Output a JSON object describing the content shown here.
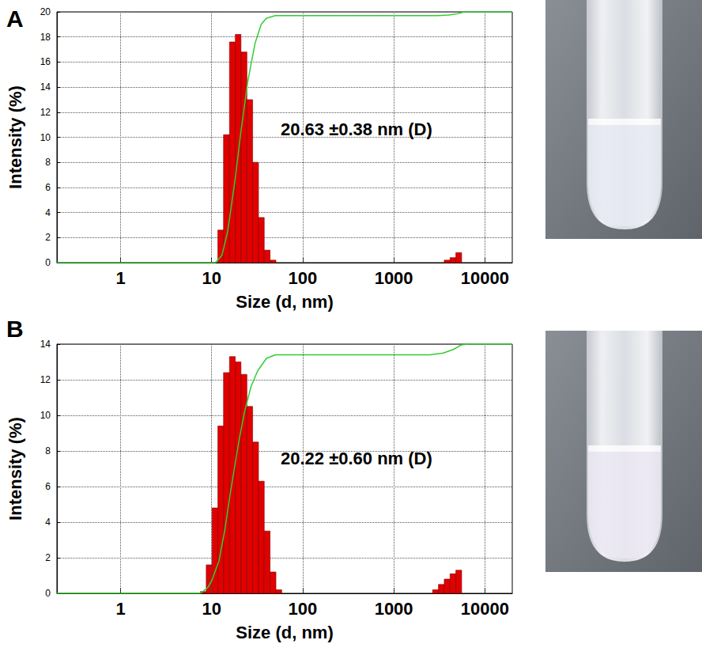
{
  "chart_data": [
    {
      "type": "histogram",
      "title": "A",
      "annotations": [
        "20.63 ±0.38 nm (D)"
      ],
      "x_label": "Size (d, nm)",
      "y_label": "Intensity (%)",
      "log": "x",
      "grid": true,
      "xlim": [
        0.2,
        20000
      ],
      "xticks": [
        1,
        10,
        100,
        1000,
        10000
      ],
      "ylim": [
        0,
        20
      ],
      "yticks": [
        0,
        2,
        4,
        6,
        8,
        10,
        12,
        14,
        16,
        18,
        20
      ],
      "bins": [
        7.53,
        8.72,
        10.1,
        11.7,
        13.5,
        15.7,
        18.2,
        21.0,
        24.4,
        28.2,
        32.7,
        37.8,
        43.8,
        50.8,
        58.8,
        68.1,
        78.8,
        91.3,
        105.7,
        122.4,
        141.8,
        164.2,
        190.1,
        220.2,
        255.0,
        295.3,
        342.0,
        396.1,
        458.7,
        531.2,
        615.2,
        712.4,
        825.0,
        955.4,
        1106,
        1281,
        1484,
        1718,
        1990,
        2305,
        2669,
        3091,
        3580,
        4146,
        4801,
        5560,
        6439
      ],
      "series": [
        {
          "type": "bar",
          "color": "#e00000",
          "values": [
            0,
            0,
            0,
            2.6,
            10.2,
            17.6,
            18.2,
            16.8,
            13.0,
            8.0,
            3.6,
            1.0,
            0.2,
            0,
            0,
            0,
            0,
            0,
            0,
            0,
            0,
            0,
            0,
            0,
            0,
            0,
            0,
            0,
            0,
            0,
            0,
            0,
            0,
            0,
            0,
            0,
            0,
            0,
            0,
            0,
            0,
            0,
            0.2,
            0.4,
            0.8,
            0
          ]
        },
        {
          "type": "line",
          "color": "#33cc33",
          "x": [
            0.2,
            11,
            13,
            15,
            18,
            21,
            25,
            30,
            35,
            40,
            50,
            100,
            1000,
            3000,
            4000,
            5000,
            6000,
            20000
          ],
          "values": [
            0,
            0,
            0.6,
            2.5,
            6.5,
            10.5,
            14.5,
            17.5,
            19,
            19.5,
            19.7,
            19.7,
            19.7,
            19.7,
            19.75,
            19.85,
            20,
            20
          ]
        }
      ]
    },
    {
      "type": "histogram",
      "title": "B",
      "annotations": [
        "20.22 ±0.60 nm (D)"
      ],
      "x_label": "Size (d, nm)",
      "y_label": "Intensity (%)",
      "log": "x",
      "grid": true,
      "xlim": [
        0.2,
        20000
      ],
      "xticks": [
        1,
        10,
        100,
        1000,
        10000
      ],
      "ylim": [
        0,
        14
      ],
      "yticks": [
        0,
        2,
        4,
        6,
        8,
        10,
        12,
        14
      ],
      "bins": [
        7.53,
        8.72,
        10.1,
        11.7,
        13.5,
        15.7,
        18.2,
        21.0,
        24.4,
        28.2,
        32.7,
        37.8,
        43.8,
        50.8,
        58.8,
        68.1,
        78.8,
        91.3,
        105.7,
        122.4,
        141.8,
        164.2,
        190.1,
        220.2,
        255.0,
        295.3,
        342.0,
        396.1,
        458.7,
        531.2,
        615.2,
        712.4,
        825.0,
        955.4,
        1106,
        1281,
        1484,
        1718,
        1990,
        2305,
        2669,
        3091,
        3580,
        4146,
        4801,
        5560,
        6439
      ],
      "series": [
        {
          "type": "bar",
          "color": "#e00000",
          "values": [
            0.1,
            1.6,
            4.8,
            9.4,
            12.4,
            13.3,
            13.0,
            12.3,
            10.5,
            8.5,
            6.3,
            3.5,
            1.2,
            0.2,
            0,
            0,
            0,
            0,
            0,
            0,
            0,
            0,
            0,
            0,
            0,
            0,
            0,
            0,
            0,
            0,
            0,
            0,
            0,
            0,
            0,
            0,
            0,
            0,
            0,
            0,
            0.2,
            0.5,
            0.8,
            1.1,
            1.3,
            0
          ]
        },
        {
          "type": "line",
          "color": "#33cc33",
          "x": [
            0.2,
            7.5,
            9,
            10,
            12,
            14,
            16,
            18,
            20,
            23,
            27,
            32,
            40,
            50,
            60,
            100,
            1000,
            2500,
            3500,
            4500,
            5500,
            6500,
            20000
          ],
          "values": [
            0,
            0,
            0.3,
            0.7,
            1.8,
            3.6,
            5.6,
            7.2,
            8.6,
            10.2,
            11.6,
            12.5,
            13.2,
            13.4,
            13.4,
            13.4,
            13.4,
            13.4,
            13.5,
            13.7,
            13.95,
            14,
            14
          ]
        }
      ]
    }
  ]
}
